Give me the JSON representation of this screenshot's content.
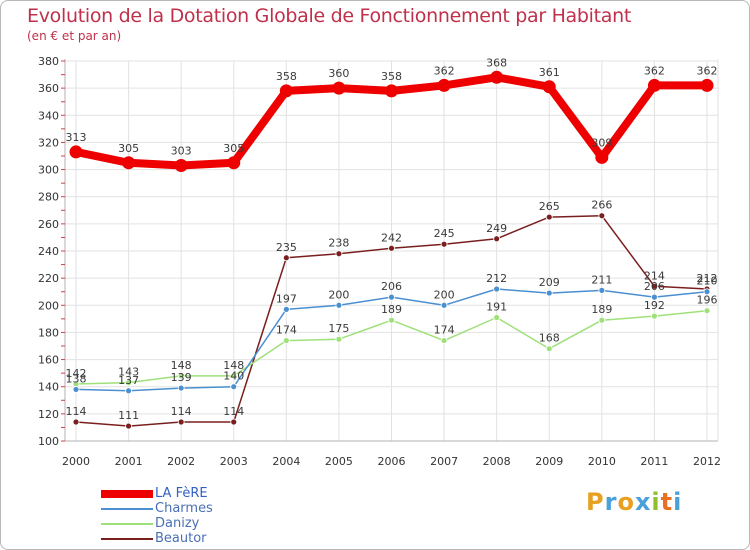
{
  "chart_data": {
    "type": "line",
    "title": "Evolution de la Dotation Globale de Fonctionnement par Habitant",
    "subtitle": "(en € et par an)",
    "xlabel": "",
    "ylabel": "",
    "ylim": [
      100,
      380
    ],
    "yticks": [
      100,
      120,
      140,
      160,
      180,
      200,
      220,
      240,
      260,
      280,
      300,
      320,
      340,
      360,
      380
    ],
    "categories": [
      "2000",
      "2001",
      "2002",
      "2003",
      "2004",
      "2005",
      "2006",
      "2007",
      "2008",
      "2009",
      "2010",
      "2011",
      "2012"
    ],
    "grid": true,
    "legend_position": "bottom-left",
    "series": [
      {
        "name": "LA FèRE",
        "color": "#ee0000",
        "values": [
          313,
          305,
          303,
          305,
          358,
          360,
          358,
          362,
          368,
          361,
          309,
          362,
          362
        ]
      },
      {
        "name": "Charmes",
        "color": "#4a8fd0",
        "values": [
          138,
          137,
          139,
          140,
          197,
          200,
          206,
          200,
          212,
          209,
          211,
          206,
          210
        ]
      },
      {
        "name": "Danizy",
        "color": "#9ee07a",
        "values": [
          142,
          143,
          148,
          148,
          174,
          175,
          189,
          174,
          191,
          168,
          189,
          192,
          196
        ]
      },
      {
        "name": "Beautor",
        "color": "#7a1f1f",
        "values": [
          114,
          111,
          114,
          114,
          235,
          238,
          242,
          245,
          249,
          265,
          266,
          214,
          212
        ]
      }
    ]
  },
  "brand": {
    "text": "Proxiti"
  }
}
